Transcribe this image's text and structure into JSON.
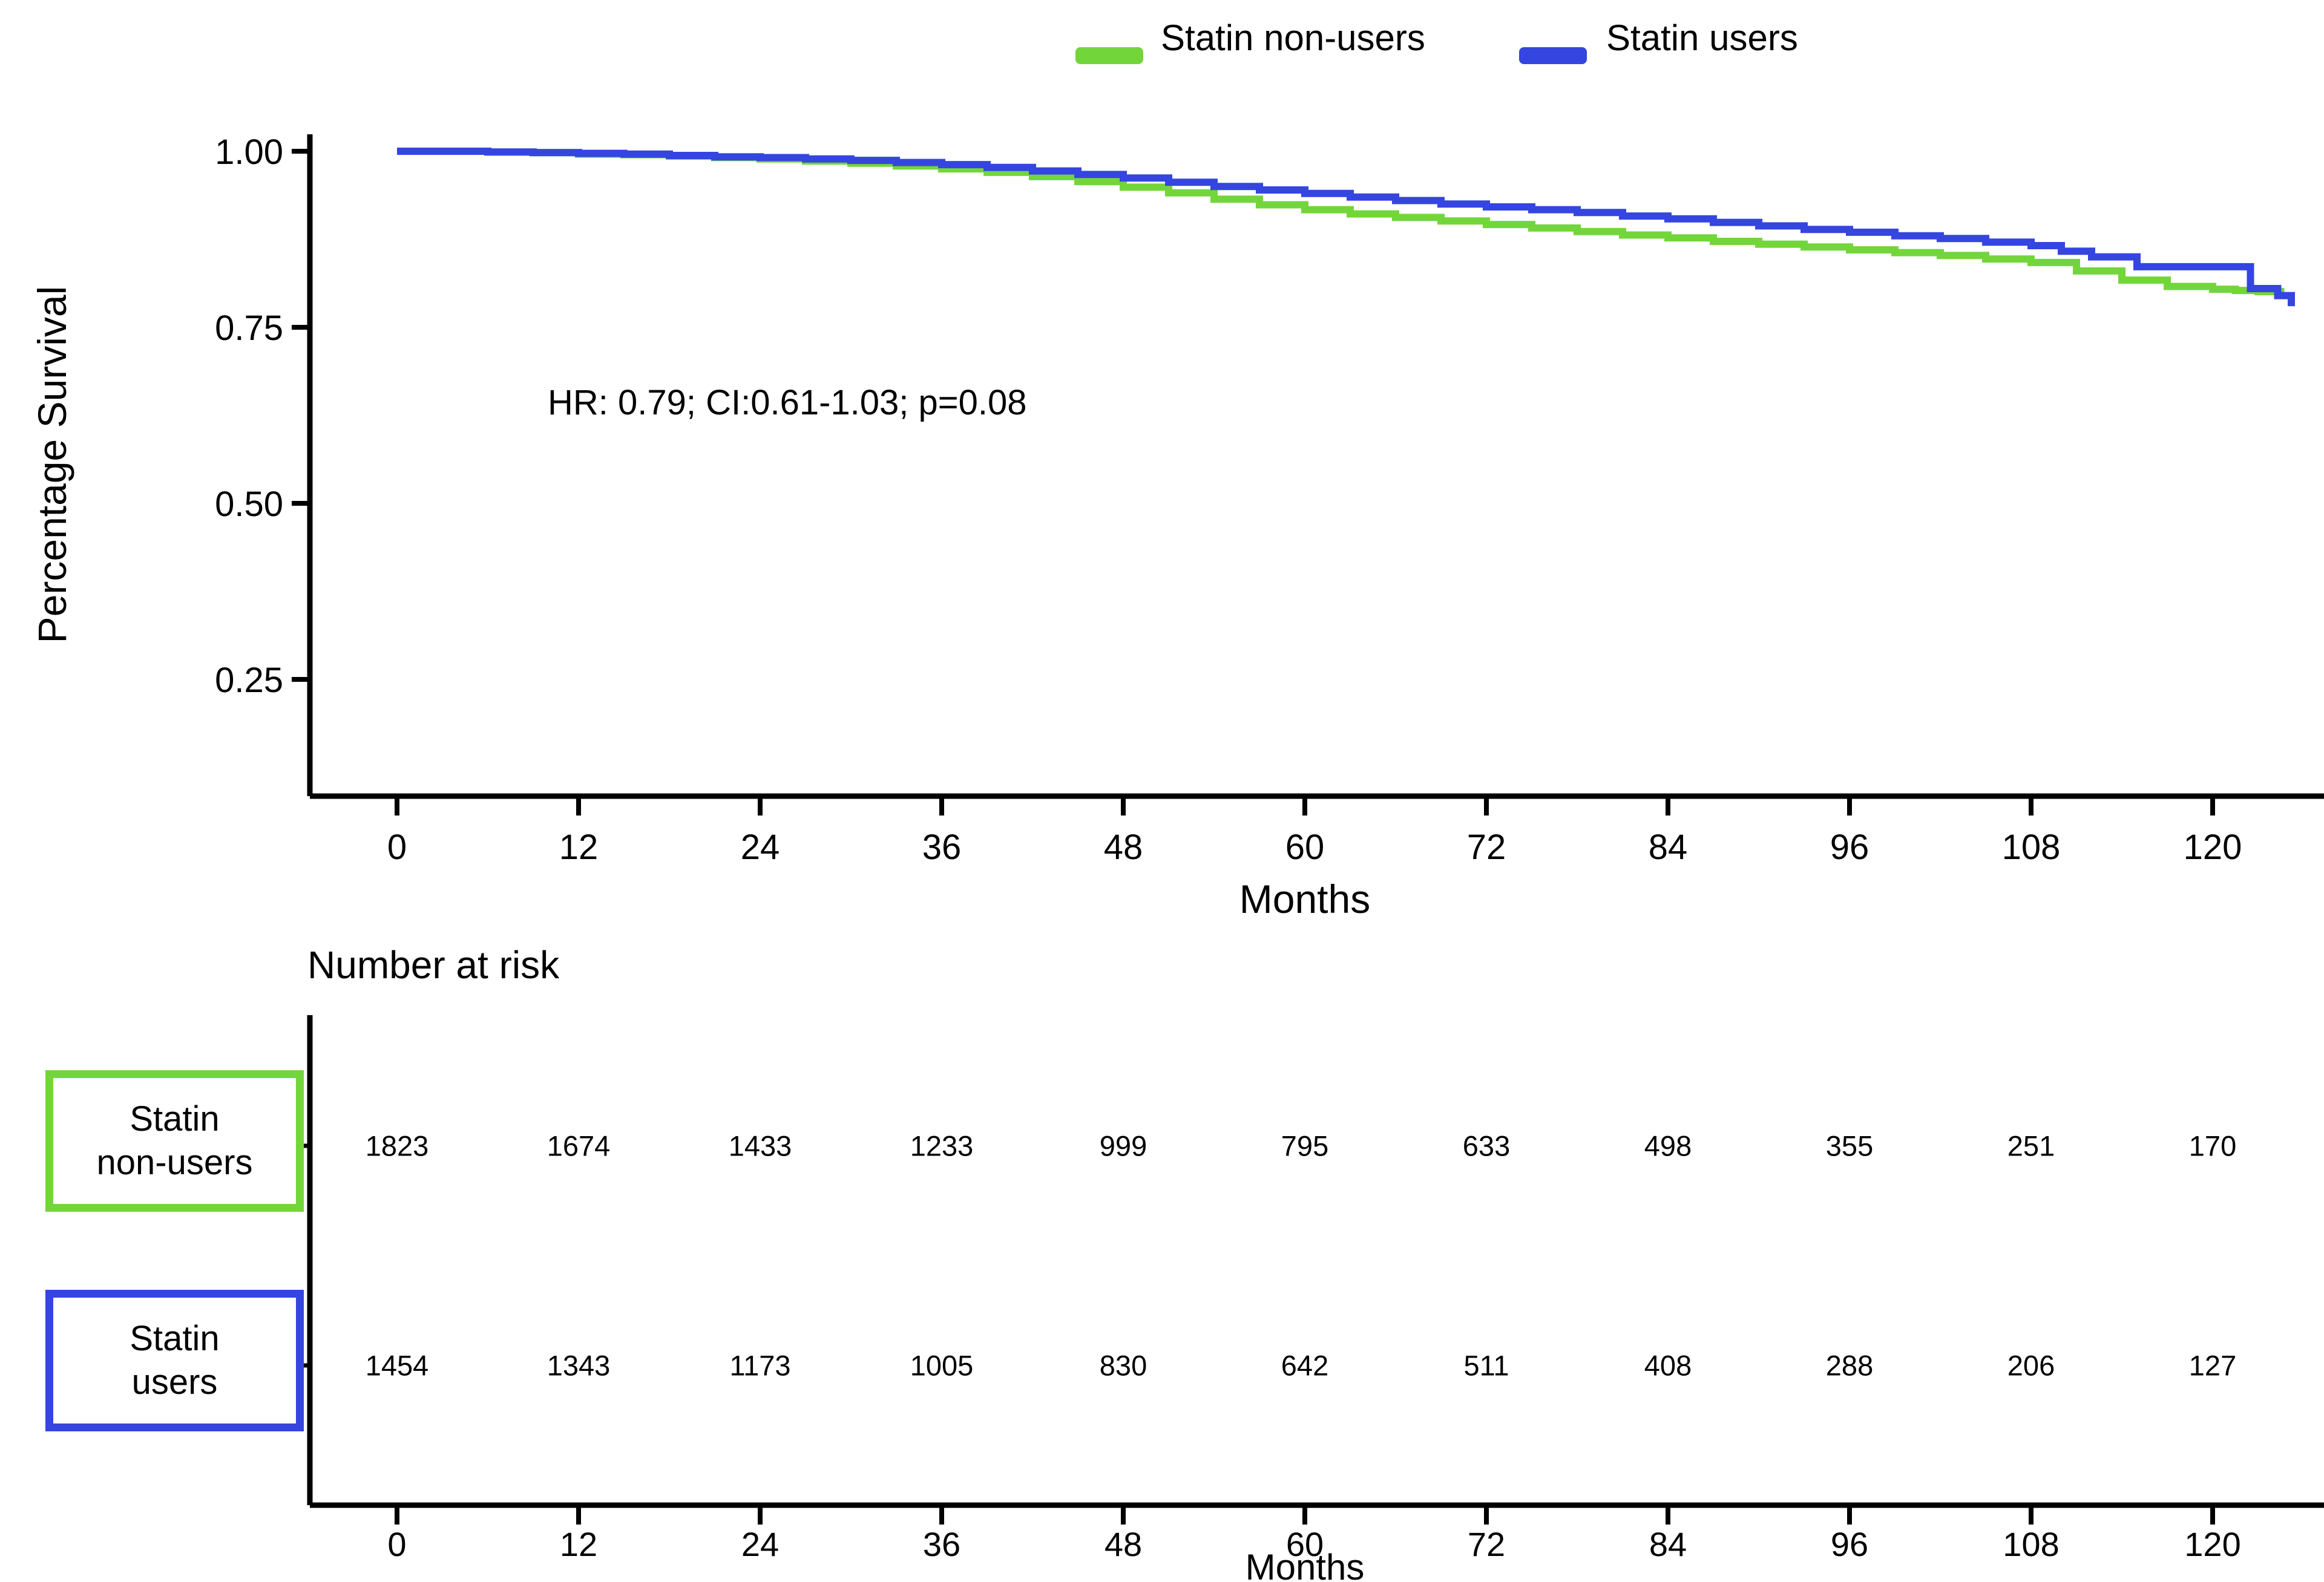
{
  "figure_title": "",
  "colors": {
    "statin_non_users": "#72d63b",
    "statin_users": "#3545e0",
    "axis": "#000000",
    "text": "#000000",
    "background": "#ffffff"
  },
  "chart_data": {
    "type": "line",
    "subtype": "kaplan-meier-step",
    "title": "",
    "xlabel": "Months",
    "ylabel": "Percentage Survival",
    "annotation": "HR: 0.79; CI:0.61-1.03; p=0.08",
    "xlim": [
      0,
      126
    ],
    "ylim": [
      0.09,
      1.02
    ],
    "grid": false,
    "legend_position": "top",
    "x_ticks": [
      "0",
      "12",
      "24",
      "36",
      "48",
      "60",
      "72",
      "84",
      "96",
      "108",
      "120"
    ],
    "y_ticks": [
      {
        "label": "1.00",
        "value": 1.0
      },
      {
        "label": "0.75",
        "value": 0.75
      },
      {
        "label": "0.50",
        "value": 0.5
      },
      {
        "label": "0.25",
        "value": 0.25
      }
    ],
    "series": [
      {
        "name": "Statin non-users",
        "color": "#72d63b",
        "points": [
          [
            0,
            1.0
          ],
          [
            3,
            1.0
          ],
          [
            6,
            0.999
          ],
          [
            9,
            0.998
          ],
          [
            12,
            0.996
          ],
          [
            15,
            0.995
          ],
          [
            18,
            0.993
          ],
          [
            21,
            0.991
          ],
          [
            24,
            0.989
          ],
          [
            27,
            0.986
          ],
          [
            30,
            0.983
          ],
          [
            33,
            0.979
          ],
          [
            36,
            0.975
          ],
          [
            39,
            0.97
          ],
          [
            42,
            0.964
          ],
          [
            45,
            0.957
          ],
          [
            48,
            0.949
          ],
          [
            51,
            0.941
          ],
          [
            54,
            0.932
          ],
          [
            57,
            0.924
          ],
          [
            60,
            0.917
          ],
          [
            63,
            0.911
          ],
          [
            66,
            0.906
          ],
          [
            69,
            0.901
          ],
          [
            72,
            0.896
          ],
          [
            75,
            0.891
          ],
          [
            78,
            0.886
          ],
          [
            81,
            0.881
          ],
          [
            84,
            0.877
          ],
          [
            87,
            0.872
          ],
          [
            90,
            0.868
          ],
          [
            93,
            0.864
          ],
          [
            96,
            0.86
          ],
          [
            99,
            0.856
          ],
          [
            102,
            0.852
          ],
          [
            105,
            0.847
          ],
          [
            108,
            0.842
          ],
          [
            111,
            0.83
          ],
          [
            114,
            0.817
          ],
          [
            117,
            0.808
          ],
          [
            120,
            0.804
          ],
          [
            124.5,
            0.799
          ]
        ]
      },
      {
        "name": "Statin users",
        "color": "#3545e0",
        "points": [
          [
            0,
            1.0
          ],
          [
            3,
            1.0
          ],
          [
            6,
            0.999
          ],
          [
            9,
            0.998
          ],
          [
            12,
            0.997
          ],
          [
            15,
            0.996
          ],
          [
            18,
            0.994
          ],
          [
            21,
            0.992
          ],
          [
            24,
            0.991
          ],
          [
            27,
            0.989
          ],
          [
            30,
            0.987
          ],
          [
            33,
            0.984
          ],
          [
            36,
            0.981
          ],
          [
            39,
            0.977
          ],
          [
            42,
            0.972
          ],
          [
            45,
            0.967
          ],
          [
            48,
            0.962
          ],
          [
            51,
            0.956
          ],
          [
            54,
            0.95
          ],
          [
            57,
            0.945
          ],
          [
            60,
            0.94
          ],
          [
            63,
            0.935
          ],
          [
            66,
            0.93
          ],
          [
            69,
            0.925
          ],
          [
            72,
            0.921
          ],
          [
            75,
            0.917
          ],
          [
            78,
            0.913
          ],
          [
            81,
            0.908
          ],
          [
            84,
            0.904
          ],
          [
            87,
            0.899
          ],
          [
            90,
            0.894
          ],
          [
            93,
            0.889
          ],
          [
            96,
            0.885
          ],
          [
            99,
            0.88
          ],
          [
            102,
            0.876
          ],
          [
            105,
            0.871
          ],
          [
            108,
            0.866
          ],
          [
            110,
            0.858
          ],
          [
            112,
            0.85
          ],
          [
            115,
            0.836
          ],
          [
            122.5,
            0.836
          ],
          [
            122.5,
            0.805
          ],
          [
            124.3,
            0.805
          ],
          [
            124.3,
            0.795
          ],
          [
            125.2,
            0.795
          ],
          [
            125.2,
            0.78
          ]
        ]
      }
    ],
    "number_at_risk": {
      "title": "Number at risk",
      "months": [
        0,
        12,
        24,
        36,
        48,
        60,
        72,
        84,
        96,
        108,
        120
      ],
      "rows": [
        {
          "name": "Statin non-users",
          "box_lines": [
            "Statin",
            "non-users"
          ],
          "color": "#72d63b",
          "counts": [
            "1823",
            "1674",
            "1433",
            "1233",
            "999",
            "795",
            "633",
            "498",
            "355",
            "251",
            "170"
          ]
        },
        {
          "name": "Statin users",
          "box_lines": [
            "Statin",
            "users"
          ],
          "color": "#3545e0",
          "counts": [
            "1454",
            "1343",
            "1173",
            "1005",
            "830",
            "642",
            "511",
            "408",
            "288",
            "206",
            "127"
          ]
        }
      ]
    }
  }
}
